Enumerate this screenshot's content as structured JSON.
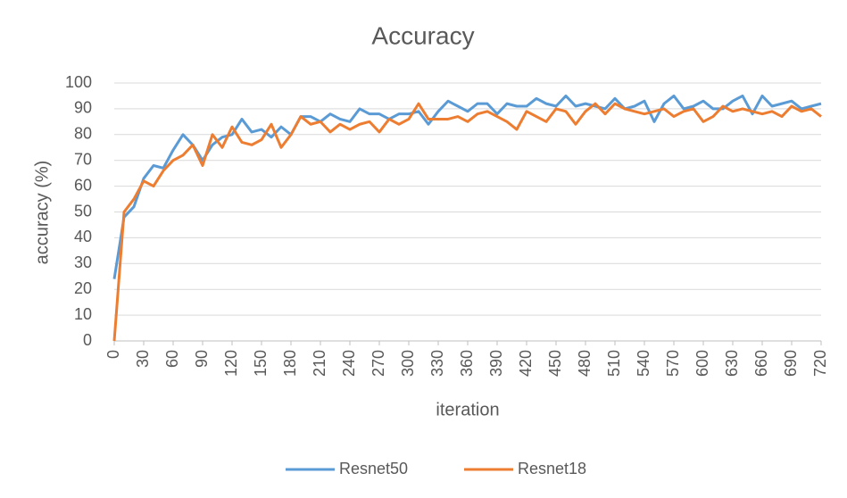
{
  "chart_data": {
    "type": "line",
    "title": "Accuracy",
    "x_label": "iteration",
    "y_label": "accuracy (%)",
    "x": [
      0,
      10,
      20,
      30,
      40,
      50,
      60,
      70,
      80,
      90,
      100,
      110,
      120,
      130,
      140,
      150,
      160,
      170,
      180,
      190,
      200,
      210,
      220,
      230,
      240,
      250,
      260,
      270,
      280,
      290,
      300,
      310,
      320,
      330,
      340,
      350,
      360,
      370,
      380,
      390,
      400,
      410,
      420,
      430,
      440,
      450,
      460,
      470,
      480,
      490,
      500,
      510,
      520,
      530,
      540,
      550,
      560,
      570,
      580,
      590,
      600,
      610,
      620,
      630,
      640,
      650,
      660,
      670,
      680,
      690,
      700,
      710,
      720
    ],
    "series": [
      {
        "name": "Resnet50",
        "color": "#5b9bd5",
        "values": [
          24,
          48,
          52,
          63,
          68,
          67,
          74,
          80,
          76,
          70,
          76,
          79,
          80,
          86,
          81,
          82,
          79,
          83,
          80,
          87,
          87,
          85,
          88,
          86,
          85,
          90,
          88,
          88,
          86,
          88,
          88,
          89,
          84,
          89,
          93,
          91,
          89,
          92,
          92,
          88,
          92,
          91,
          91,
          94,
          92,
          91,
          95,
          91,
          92,
          91,
          90,
          94,
          90,
          91,
          93,
          85,
          92,
          95,
          90,
          91,
          93,
          90,
          90,
          93,
          95,
          88,
          95,
          91,
          92,
          93,
          90,
          91,
          92
        ]
      },
      {
        "name": "Resnet18",
        "color": "#ed7d31",
        "values": [
          0,
          50,
          55,
          62,
          60,
          66,
          70,
          72,
          76,
          68,
          80,
          75,
          83,
          77,
          76,
          78,
          84,
          75,
          80,
          87,
          84,
          85,
          81,
          84,
          82,
          84,
          85,
          81,
          86,
          84,
          86,
          92,
          86,
          86,
          86,
          87,
          85,
          88,
          89,
          87,
          85,
          82,
          89,
          87,
          85,
          90,
          89,
          84,
          89,
          92,
          88,
          92,
          90,
          89,
          88,
          89,
          90,
          87,
          89,
          90,
          85,
          87,
          91,
          89,
          90,
          89,
          88,
          89,
          87,
          91,
          89,
          90,
          87
        ]
      }
    ],
    "xlim": [
      0,
      720
    ],
    "xticks": [
      0,
      30,
      60,
      90,
      120,
      150,
      180,
      210,
      240,
      270,
      300,
      330,
      360,
      390,
      420,
      450,
      480,
      510,
      540,
      570,
      600,
      630,
      660,
      690,
      720
    ],
    "ylim": [
      0,
      100
    ],
    "yticks": [
      0,
      10,
      20,
      30,
      40,
      50,
      60,
      70,
      80,
      90,
      100
    ],
    "grid": true,
    "legend": "bottom"
  }
}
